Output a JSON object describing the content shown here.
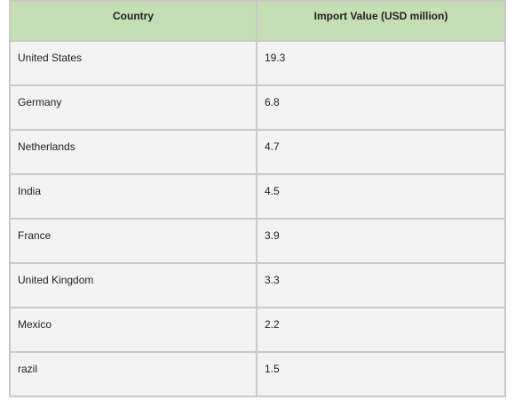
{
  "chart_data": {
    "type": "table",
    "columns": [
      "Country",
      "Import Value (USD million)"
    ],
    "rows": [
      {
        "country": "United States",
        "value": "19.3"
      },
      {
        "country": "Germany",
        "value": "6.8"
      },
      {
        "country": "Netherlands",
        "value": "4.7"
      },
      {
        "country": "India",
        "value": "4.5"
      },
      {
        "country": "France",
        "value": "3.9"
      },
      {
        "country": "United Kingdom",
        "value": "3.3"
      },
      {
        "country": "Mexico",
        "value": "2.2"
      },
      {
        "country": "razil",
        "value": "1.5"
      }
    ]
  },
  "colors": {
    "header_bg": "#c3dfb3",
    "cell_bg": "#f3f3f3",
    "border": "#c9c9c9",
    "text": "#222222"
  }
}
